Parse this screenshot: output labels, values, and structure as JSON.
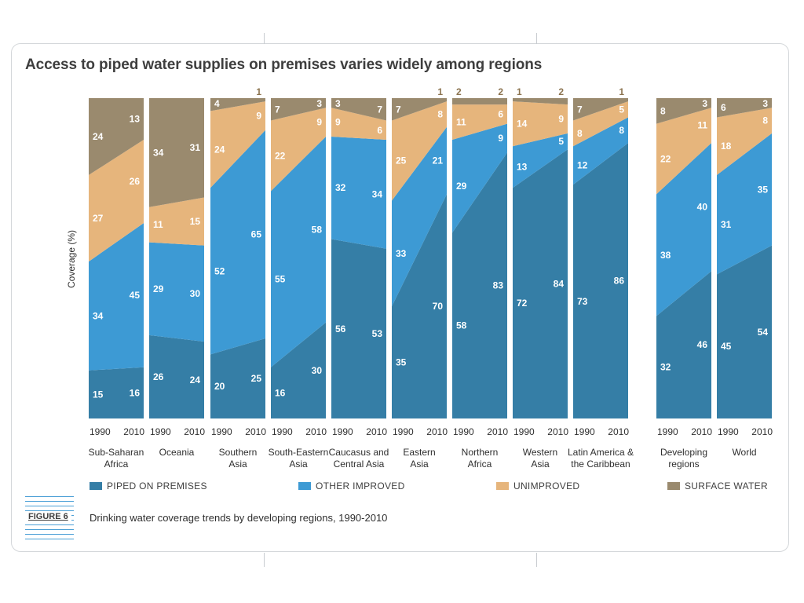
{
  "title": "Access to piped water supplies on premises varies widely among regions",
  "figure_label": "FIGURE 6",
  "caption": "Drinking water coverage trends by developing regions, 1990-2010",
  "colors": {
    "piped": "#357ea6",
    "other": "#3d9ad4",
    "unimproved": "#e6b57c",
    "surface": "#9a8a6e",
    "label_light": "#ffffff",
    "label_dark": "#8c7450"
  },
  "chart_data": {
    "type": "area",
    "title": "Access to piped water supplies on premises varies widely among regions",
    "ylabel": "Coverage (%)",
    "ylim": [
      0,
      100
    ],
    "stack_order": [
      "piped",
      "other",
      "unimproved",
      "surface"
    ],
    "legend": [
      {
        "key": "piped",
        "label": "PIPED ON PREMISES"
      },
      {
        "key": "other",
        "label": "OTHER IMPROVED"
      },
      {
        "key": "unimproved",
        "label": "UNIMPROVED"
      },
      {
        "key": "surface",
        "label": "SURFACE WATER"
      }
    ],
    "regions": [
      {
        "name": "Sub-Saharan\nAfrica",
        "years": [
          "1990",
          "2010"
        ],
        "piped": [
          15,
          16
        ],
        "other": [
          34,
          45
        ],
        "unimproved": [
          27,
          26
        ],
        "surface": [
          24,
          13
        ]
      },
      {
        "name": "Oceania",
        "years": [
          "1990",
          "2010"
        ],
        "piped": [
          26,
          24
        ],
        "other": [
          29,
          30
        ],
        "unimproved": [
          11,
          15
        ],
        "surface": [
          34,
          31
        ]
      },
      {
        "name": "Southern\nAsia",
        "years": [
          "1990",
          "2010"
        ],
        "piped": [
          20,
          25
        ],
        "other": [
          52,
          65
        ],
        "unimproved": [
          24,
          9
        ],
        "surface": [
          4,
          1
        ]
      },
      {
        "name": "South-Eastern\nAsia",
        "years": [
          "1990",
          "2010"
        ],
        "piped": [
          16,
          30
        ],
        "other": [
          55,
          58
        ],
        "unimproved": [
          22,
          9
        ],
        "surface": [
          7,
          3
        ]
      },
      {
        "name": "Caucasus and\nCentral Asia",
        "years": [
          "1990",
          "2010"
        ],
        "piped": [
          56,
          53
        ],
        "other": [
          32,
          34
        ],
        "unimproved": [
          9,
          6
        ],
        "surface": [
          3,
          7
        ]
      },
      {
        "name": "Eastern\nAsia",
        "years": [
          "1990",
          "2010"
        ],
        "piped": [
          35,
          70
        ],
        "other": [
          33,
          21
        ],
        "unimproved": [
          25,
          8
        ],
        "surface": [
          7,
          1
        ]
      },
      {
        "name": "Northern\nAfrica",
        "years": [
          "1990",
          "2010"
        ],
        "piped": [
          58,
          83
        ],
        "other": [
          29,
          9
        ],
        "unimproved": [
          11,
          6
        ],
        "surface": [
          2,
          2
        ]
      },
      {
        "name": "Western\nAsia",
        "years": [
          "1990",
          "2010"
        ],
        "piped": [
          72,
          84
        ],
        "other": [
          13,
          5
        ],
        "unimproved": [
          14,
          9
        ],
        "surface": [
          1,
          2
        ]
      },
      {
        "name": "Latin America &\nthe Caribbean",
        "years": [
          "1990",
          "2010"
        ],
        "piped": [
          73,
          86
        ],
        "other": [
          12,
          8
        ],
        "unimproved": [
          8,
          5
        ],
        "surface": [
          7,
          1
        ]
      },
      {
        "name": "Developing\nregions",
        "years": [
          "1990",
          "2010"
        ],
        "piped": [
          32,
          46
        ],
        "other": [
          38,
          40
        ],
        "unimproved": [
          22,
          11
        ],
        "surface": [
          8,
          3
        ]
      },
      {
        "name": "World",
        "years": [
          "1990",
          "2010"
        ],
        "piped": [
          45,
          54
        ],
        "other": [
          31,
          35
        ],
        "unimproved": [
          18,
          8
        ],
        "surface": [
          6,
          3
        ]
      }
    ]
  }
}
